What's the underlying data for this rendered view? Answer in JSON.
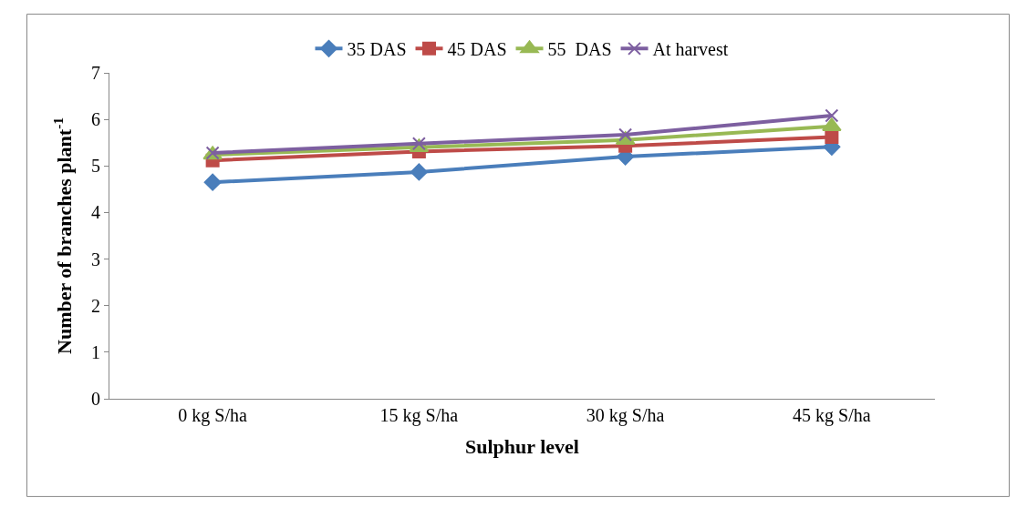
{
  "chart_data": {
    "type": "line",
    "xlabel": "Sulphur level",
    "ylabel": "Number of branches plant$^{-1}$",
    "categories": [
      "0 kg S/ha",
      "15 kg S/ha",
      "30 kg S/ha",
      "45 kg S/ha"
    ],
    "series": [
      {
        "name": "35 DAS",
        "color": "#4a7ebb",
        "marker": "diamond",
        "values": [
          4.65,
          4.87,
          5.2,
          5.41
        ]
      },
      {
        "name": "45 DAS",
        "color": "#be4b48",
        "marker": "square",
        "values": [
          5.12,
          5.31,
          5.43,
          5.62
        ]
      },
      {
        "name": "55  DAS",
        "color": "#98b954",
        "marker": "triangle",
        "values": [
          5.24,
          5.4,
          5.56,
          5.85
        ]
      },
      {
        "name": "At harvest",
        "color": "#7d5fa0",
        "marker": "cross",
        "values": [
          5.28,
          5.48,
          5.67,
          6.08
        ]
      }
    ],
    "ylim": [
      0,
      7
    ],
    "yticks": [
      0,
      1,
      2,
      3,
      4,
      5,
      6,
      7
    ],
    "legend": "top",
    "line_style": "solid"
  }
}
